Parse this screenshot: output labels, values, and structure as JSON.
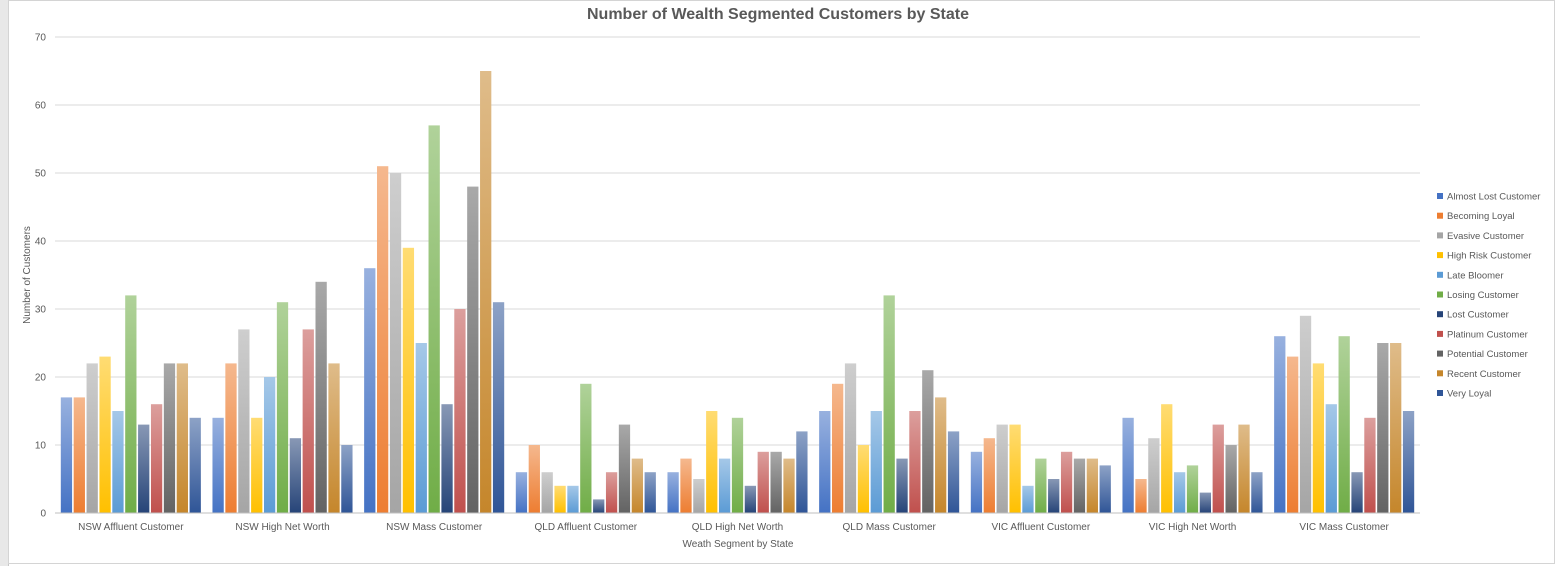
{
  "chart_data": {
    "type": "bar",
    "title": "Number of Wealth Segmented Customers by State",
    "xlabel": "Weath Segment by State",
    "ylabel": "Number of Customers",
    "ylim": [
      0,
      70
    ],
    "yticks": [
      0,
      10,
      20,
      30,
      40,
      50,
      60,
      70
    ],
    "grid": true,
    "legend_position": "right",
    "categories": [
      "NSW Affluent Customer",
      "NSW High Net Worth",
      "NSW Mass Customer",
      "QLD Affluent Customer",
      "QLD High Net Worth",
      "QLD Mass Customer",
      "VIC Affluent Customer",
      "VIC High Net Worth",
      "VIC Mass Customer"
    ],
    "series": [
      {
        "name": "Almost Lost Customer",
        "color": "#4472c4",
        "values": [
          17,
          14,
          36,
          6,
          6,
          15,
          9,
          14,
          26
        ]
      },
      {
        "name": "Becoming Loyal",
        "color": "#ed7d31",
        "values": [
          17,
          22,
          51,
          10,
          8,
          19,
          11,
          5,
          23
        ]
      },
      {
        "name": "Evasive Customer",
        "color": "#a5a5a5",
        "values": [
          22,
          27,
          50,
          6,
          5,
          22,
          13,
          11,
          29
        ]
      },
      {
        "name": "High Risk Customer",
        "color": "#ffc000",
        "values": [
          23,
          14,
          39,
          4,
          15,
          10,
          13,
          16,
          22
        ]
      },
      {
        "name": "Late Bloomer",
        "color": "#5b9bd5",
        "values": [
          15,
          20,
          25,
          4,
          8,
          15,
          4,
          6,
          16
        ]
      },
      {
        "name": "Losing Customer",
        "color": "#70ad47",
        "values": [
          32,
          31,
          57,
          19,
          14,
          32,
          8,
          7,
          26
        ]
      },
      {
        "name": "Lost Customer",
        "color": "#264478",
        "values": [
          13,
          11,
          16,
          2,
          4,
          8,
          5,
          3,
          6
        ]
      },
      {
        "name": "Platinum Customer",
        "color": "#c0504d",
        "values": [
          16,
          27,
          30,
          6,
          9,
          15,
          9,
          13,
          14
        ]
      },
      {
        "name": "Potential Customer",
        "color": "#636363",
        "values": [
          22,
          34,
          48,
          13,
          9,
          21,
          8,
          10,
          25
        ]
      },
      {
        "name": "Recent Customer",
        "color": "#c5862b",
        "values": [
          22,
          22,
          65,
          8,
          8,
          17,
          8,
          13,
          25
        ]
      },
      {
        "name": "Very Loyal",
        "color": "#2f5597",
        "values": [
          14,
          10,
          31,
          6,
          12,
          12,
          7,
          6,
          15
        ]
      }
    ]
  }
}
